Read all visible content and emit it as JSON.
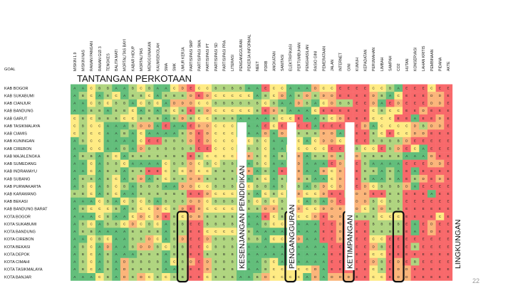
{
  "chart_data": {
    "type": "heatmap",
    "title": "TANTANGAN PERKOTAAN",
    "corner_label": "GOAL",
    "page_number": "22",
    "rows": [
      "KAB BOGOR",
      "KAB SUKABUMI",
      "KAB CIANJUR",
      "KAB BANDUNG",
      "KAB GARUT",
      "KAB TASIKMALAYA",
      "KAB CIAMIS",
      "KAB KUNINGAN",
      "KAB CIREBON",
      "KAB MAJALENGKA",
      "KAB SUMEDANG",
      "KAB INDRAMAYU",
      "KAB SUBANG",
      "KAB PURWAKARTA",
      "KAB KARAWANG",
      "KAB BEKASI",
      "KAB BANDUNG BARAT",
      "KOTA BOGOR",
      "KOTA SUKABUMI",
      "KOTA BANDUNG",
      "KOTA CIREBON",
      "KOTA BEKASI",
      "KOTA DEPOK",
      "KOTA CIMAHI",
      "KOTA TASIKMALAYA",
      "KOTA BANJAR"
    ],
    "columns": [
      "MISKIN 1.9",
      "MISKIN NAS",
      "RAWAN PANGAN",
      "RAWAN GIZI 3",
      "TENGKES",
      "BALITA MATI",
      "MORTALITAS BAYI",
      "KABAR HIDUP",
      "MORTALITAS",
      "MENGGUNAKAN",
      "KAUMSEKOLAH",
      "SMA",
      "SMK",
      "UMUR KERJA",
      "PARTISIPASI SMP",
      "PARTISIPASI SMA",
      "PARTISIPASI PT",
      "PARTISIPASI SD",
      "PARTISIPASI PRA",
      "LITERASI",
      "PENGANGGURAN",
      "PEKERJA INFORMAL",
      "NEET",
      "PDRB",
      "ANGKATAN",
      "SANITASI",
      "ELEKTRIFIKASI",
      "PERTUMBUHAN",
      "PENGHASILAN",
      "RASIO GINI",
      "PEMERATAAN",
      "JALAN",
      "INTERNET",
      "GINI",
      "KUMUH",
      "KEPADATAN",
      "PERUMAHAN",
      "LIMBAH",
      "SAMPAH",
      "CO2",
      "HUTAN",
      "KONSERVASI",
      "LAHAN KRITIS",
      "PEMBINAAN",
      "PIDANA",
      "AKTE"
    ],
    "groups": [
      {
        "label": "KESENJANGAN PENDIDIKAN",
        "from": 12,
        "to": 19
      },
      {
        "label": "PENGANGGURAN",
        "from": 20,
        "to": 25
      },
      {
        "label": "KETIMPANGAN",
        "from": 26,
        "to": 32
      },
      {
        "label": "LINGKUNGAN",
        "from": 33,
        "to": 45
      }
    ],
    "highlight_boxes": [
      {
        "column": 13,
        "row_from": 17,
        "row_to": 25
      },
      {
        "column": 26,
        "row_from": 17,
        "row_to": 25
      },
      {
        "column": 33,
        "row_from": 17,
        "row_to": 25
      },
      {
        "column": 39,
        "row_from": 17,
        "row_to": 25
      }
    ],
    "grade_colors": {
      "A": "#63be7b",
      "B": "#b0d580",
      "C": "#ffeb84",
      "D": "#fbb57a",
      "E": "#f8696b",
      "blank": "#ffffff"
    },
    "grades": [
      "AACBBAABCBAACDECCBBBBAAECCAAADCCEEEECCBAEEECEE",
      "ABCABCABBCABBBDEDCCCCCABCDABDBDDEEEEDBACEEEDDE",
      "AACBCBBACBCADDDCCBBBBBBCBAADBACDBBEEDAEDEEEDDE",
      "AABBABBCABABCBEBDCCCCCBEDBAAACEEEEEECBCCEEDEEE",
      "CBCBBBCCBBBABDBCCBBBAAAABCCEAABCDEEECCCEEAEEDE",
      "CBCCAAABDDAEAAEDDCCCAAAECEEEEAEEEEEDACCCCDBDDE",
      "CBCCAABACAAAABDEDCCCAAADADDBBBDDAEEEBCECCDDEEE",
      "ABCCAAAACEEBBBDEDCCCCCBCAAACACDDCCEEBBBBDEEEEE",
      "AACCAABADBBBBBBEECCCBBBCAACCCCCEEBBCCEBDECAEEE",
      "ABBABCABBBBBBBEBCCCCDDBCABADABBDBEDBBBBBAAADEE",
      "AACABBCAAAACBBDCBCBBAABCAABDAAAEDBEBAAAAEEEDDE",
      "AACABBABBEECBCDCCBBBDDABAEEDAADCDEEBBABAEAEEEE",
      "ABBABCABDABCBBDDBBBBAABCABADBAACDEEBAABAEBDEDE",
      "ABCABCBABBBAADDCCBBBCCBBABCBABDCDEEDCBBBDAEEEE",
      "BBCABCAABBBBBBEEDCCCBBACBCADCCDEEBDDEEBBEEEAEE",
      "AAACBACBCBABBBDDCBBBBBCBCBBCABADEEDDBCBBEEEEEE",
      "ABCCCBABCCDCBDEDCCCCBBBDDBBDCCDDDDDCBDBBEEEEEE",
      "AAACBAACDCDEBCDDBBBBAAAECBCCCDEDDDBBBCCCEEEECE",
      "ABCABBCDCBCABBEEBBBBAAABCCCAAAEEDEEEBBBBEAEDEE",
      "ABBAAAABBBBABBEECCCCBBAAAAAAAAEEDEEEBBBBEAEDEE",
      "AACBCAABBDCABDEEDBBBBBBACCCDAAEEDEEECCEEEEEEEE",
      "ABCADAABDDBCBBEECBBBAAAAAAAAAAAEEEEEDBEEEBEEEE",
      "ABCABAAABBBABBEEBBBBAAAAAAAAAAAEEEEECCEEEEEEEE",
      "ABCABADBBBBACBDEDBBBAAABCAAAAAAEEEEEDBEDEBEEEE",
      "ABCABADBBBBAABEEDBBBAAABCCCCCDAEEEEECBEDDEEEEE",
      "AAACBADBDCBCBBEECBBBAABDCCCCADADDDEECCEDDEEEEE"
    ]
  }
}
